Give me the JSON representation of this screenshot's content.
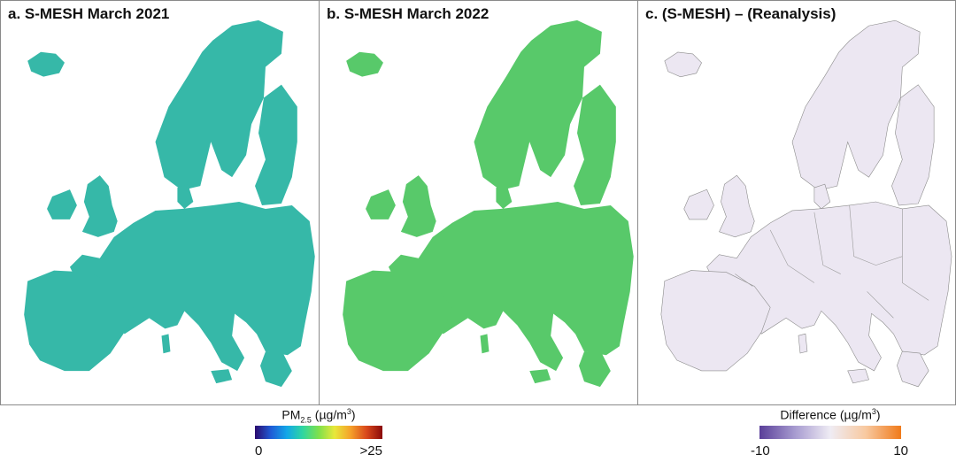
{
  "panels": [
    {
      "title": "a. S-MESH March 2021",
      "color_scale": "pm25"
    },
    {
      "title": "b. S-MESH March 2022",
      "color_scale": "pm25"
    },
    {
      "title": "c. (S-MESH) – (Reanalysis)",
      "color_scale": "difference"
    }
  ],
  "legend_pm": {
    "label_main": "PM",
    "label_sub": "2.5",
    "label_unit_open": " (µg/m",
    "label_sup": "3",
    "label_unit_close": ")",
    "min": "0",
    "max": ">25",
    "colors": [
      "#2b0a6e",
      "#1f5bd6",
      "#13a7e8",
      "#2fd6a0",
      "#7ee04c",
      "#e8e83a",
      "#f5a12a",
      "#d9481b",
      "#8a0a0a"
    ]
  },
  "legend_diff": {
    "label_main": "Difference (µg/m",
    "label_sup": "3",
    "label_unit_close": ")",
    "min": "-10",
    "max": "10",
    "colors": [
      "#5a3f99",
      "#a79bd0",
      "#efecf4",
      "#f8c9a0",
      "#f07a1a"
    ]
  }
}
